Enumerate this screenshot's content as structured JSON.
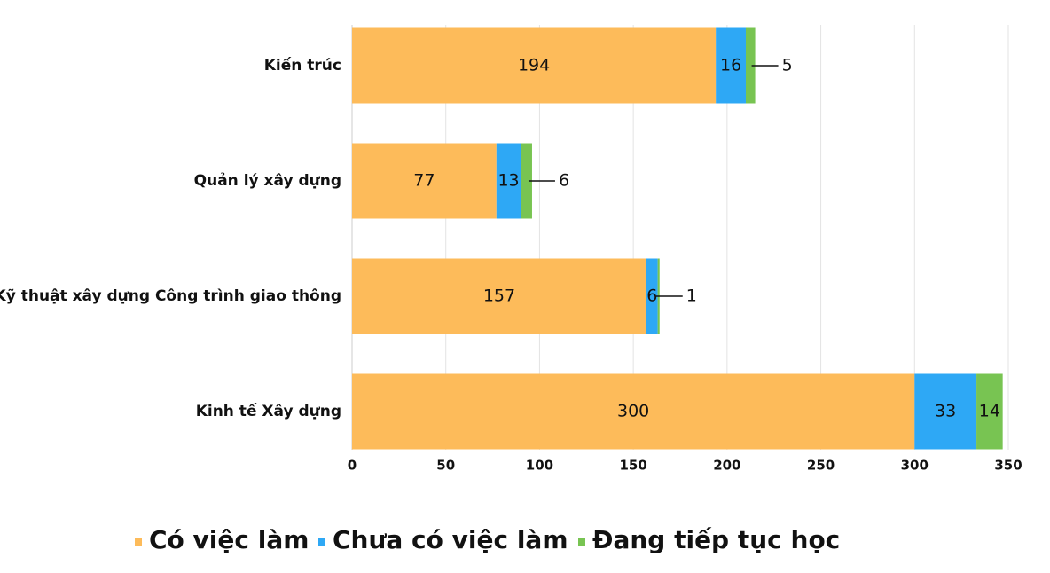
{
  "chart_data": {
    "type": "stacked_barh",
    "categories": [
      "Kiến trúc",
      "Quản lý xây dựng",
      "Kỹ thuật xây dựng Công trình giao thông",
      "Kinh tế Xây dựng"
    ],
    "series": [
      {
        "name": "Có việc làm",
        "color": "#fdbb5a",
        "values": [
          194,
          77,
          157,
          300
        ]
      },
      {
        "name": "Chưa có việc làm",
        "color": "#2ea8f5",
        "values": [
          16,
          13,
          6,
          33
        ]
      },
      {
        "name": "Đang tiếp tục học",
        "color": "#78c452",
        "values": [
          5,
          6,
          1,
          14
        ]
      }
    ],
    "xlim": [
      0,
      350
    ],
    "xticks": [
      0,
      50,
      100,
      150,
      200,
      250,
      300,
      350
    ],
    "grid": true,
    "legend": "bottom"
  }
}
